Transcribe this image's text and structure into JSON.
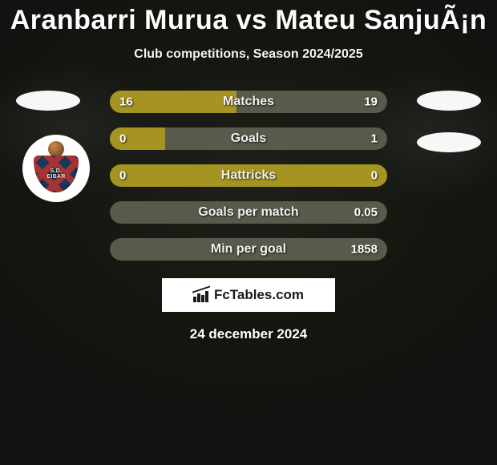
{
  "title": "Aranbarri Murua vs Mateu SanjuÃ¡n",
  "subtitle": "Club competitions, Season 2024/2025",
  "club_badge_text": "S.D.\nEIBAR",
  "colors": {
    "bar_left": "#a59422",
    "bar_right": "#595a4b",
    "bar_full_left": "#a59422"
  },
  "bars": [
    {
      "label": "Matches",
      "left_val": "16",
      "right_val": "19",
      "left_pct": 45.7,
      "right_pct": 54.3
    },
    {
      "label": "Goals",
      "left_val": "0",
      "right_val": "1",
      "left_pct": 20.0,
      "right_pct": 80.0
    },
    {
      "label": "Hattricks",
      "left_val": "0",
      "right_val": "0",
      "left_pct": 100,
      "right_pct": 0,
      "full_left": true
    },
    {
      "label": "Goals per match",
      "left_val": "",
      "right_val": "0.05",
      "left_pct": 0,
      "right_pct": 100
    },
    {
      "label": "Min per goal",
      "left_val": "",
      "right_val": "1858",
      "left_pct": 0,
      "right_pct": 100
    }
  ],
  "footer_brand": "FcTables.com",
  "date": "24 december 2024"
}
